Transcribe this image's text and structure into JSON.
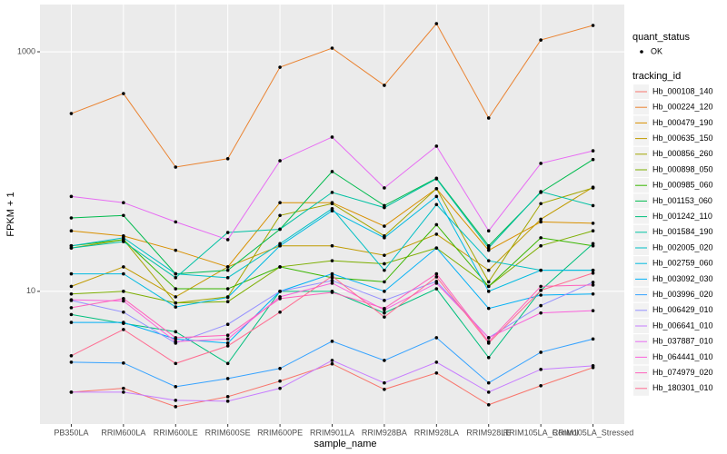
{
  "chart_data": {
    "type": "line",
    "x_label": "sample_name",
    "y_label": "FPKM + 1",
    "log_y": true,
    "grid": true,
    "legend_position": "right",
    "point_color": "#000000",
    "shape_legend_title": "quant_status",
    "shape_legend_entries": [
      "OK"
    ],
    "color_legend_title": "tracking_id",
    "categories": [
      "PB350LA",
      "RRIM600LA",
      "RRIM600LE",
      "RRIM600SE",
      "RRIM600PE",
      "RRIM901LA",
      "RRIM928BA",
      "RRIM928LA",
      "RRIM928LE",
      "RRIM105LA_Control",
      "RRIM105LA_Stressed"
    ],
    "ylim": [
      0.78,
      2480
    ],
    "yticks": [
      10,
      1000
    ],
    "series": [
      {
        "name": "Hb_000108_140",
        "color": "#F8766D",
        "values": [
          1.44,
          1.55,
          1.09,
          1.32,
          1.78,
          2.48,
          1.52,
          2.08,
          1.13,
          1.63,
          2.31
        ]
      },
      {
        "name": "Hb_000224_120",
        "color": "#EA8331",
        "values": [
          305,
          448,
          109,
          128,
          743,
          1072,
          525,
          1718,
          280,
          1254,
          1660
        ]
      },
      {
        "name": "Hb_000479_190",
        "color": "#D89000",
        "values": [
          32,
          29,
          22,
          16,
          55,
          55,
          35,
          72,
          22,
          38,
          37
        ]
      },
      {
        "name": "Hb_000635_150",
        "color": "#C09B00",
        "values": [
          11,
          16,
          9,
          16,
          24,
          24,
          20,
          30,
          15,
          40,
          74
        ]
      },
      {
        "name": "Hb_000856_260",
        "color": "#A3A500",
        "values": [
          23,
          27,
          8,
          9,
          43,
          54,
          29,
          72,
          12,
          54,
          73
        ]
      },
      {
        "name": "Hb_000898_050",
        "color": "#7CAE00",
        "values": [
          9.5,
          10,
          8,
          8.2,
          16,
          18,
          17,
          23,
          11,
          24,
          32
        ]
      },
      {
        "name": "Hb_000985_060",
        "color": "#39B600",
        "values": [
          24,
          27,
          10.5,
          10.5,
          16,
          13,
          12,
          36,
          11,
          28,
          24
        ]
      },
      {
        "name": "Hb_001153_060",
        "color": "#00BB4E",
        "values": [
          41,
          43,
          14,
          15,
          33,
          100,
          52,
          88,
          24,
          67,
          126
        ]
      },
      {
        "name": "Hb_001242_110",
        "color": "#00BF7D",
        "values": [
          6.4,
          5.4,
          4.6,
          2.5,
          10,
          10,
          6.6,
          10.5,
          2.8,
          10.2,
          25
        ]
      },
      {
        "name": "Hb_001584_190",
        "color": "#00C1A3",
        "values": [
          23,
          26,
          13,
          31,
          33,
          67,
          50,
          87,
          23,
          68,
          52
        ]
      },
      {
        "name": "Hb_002005_020",
        "color": "#00BFC4",
        "values": [
          24,
          28,
          14,
          13,
          25,
          49,
          15,
          53,
          18,
          15,
          15
        ]
      },
      {
        "name": "Hb_002759_060",
        "color": "#00BAE0",
        "values": [
          14,
          14,
          7.4,
          8.9,
          24,
          47,
          28,
          62,
          10,
          15,
          15
        ]
      },
      {
        "name": "Hb_003092_030",
        "color": "#00B0F6",
        "values": [
          5.5,
          5.5,
          4,
          3.7,
          10,
          14,
          10,
          23,
          7.2,
          9.3,
          9.5
        ]
      },
      {
        "name": "Hb_003996_020",
        "color": "#35A2FF",
        "values": [
          2.56,
          2.52,
          1.6,
          1.87,
          2.27,
          3.83,
          2.65,
          4.1,
          1.72,
          3.1,
          4.0
        ]
      },
      {
        "name": "Hb_006429_010",
        "color": "#9590FF",
        "values": [
          8.4,
          6.7,
          3.7,
          5.3,
          10,
          12.3,
          8.4,
          12.1,
          4.1,
          7.6,
          11.9
        ]
      },
      {
        "name": "Hb_006641_010",
        "color": "#C77CFF",
        "values": [
          1.44,
          1.44,
          1.23,
          1.21,
          1.55,
          2.65,
          1.72,
          2.56,
          1.44,
          2.23,
          2.39
        ]
      },
      {
        "name": "Hb_037887_010",
        "color": "#E76BF3",
        "values": [
          62,
          55,
          38,
          27,
          123,
          194,
          73,
          163,
          32,
          117,
          149
        ]
      },
      {
        "name": "Hb_064441_010",
        "color": "#FA62DB",
        "values": [
          8.5,
          8.3,
          3.8,
          4,
          9,
          11.7,
          7,
          11.7,
          4.1,
          6.6,
          6.9
        ]
      },
      {
        "name": "Hb_074979_020",
        "color": "#FF62BC",
        "values": [
          7.3,
          8.7,
          4.1,
          4.3,
          8.7,
          9.8,
          7.2,
          14,
          3.8,
          11,
          11.3
        ]
      },
      {
        "name": "Hb_180301_010",
        "color": "#FF6C91",
        "values": [
          2.9,
          4.8,
          2.5,
          3.5,
          6.7,
          13.4,
          6.1,
          13.2,
          3.7,
          10.2,
          14.2
        ]
      }
    ]
  }
}
